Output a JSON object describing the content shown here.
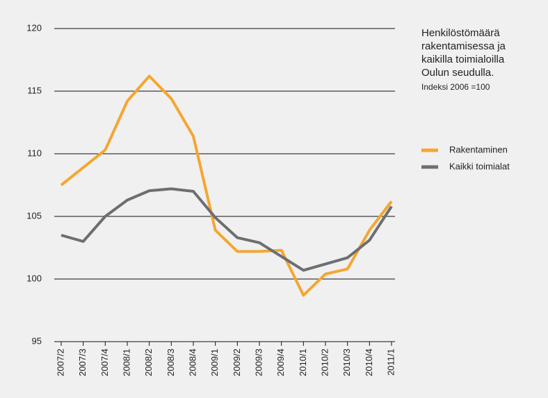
{
  "chart_data": {
    "type": "line",
    "title": "Henkilöstömäärä rakentamisessa ja kaikilla toimialoilla Oulun seudulla.",
    "subtitle": "Indeksi 2006 =100",
    "categories": [
      "2007/2",
      "2007/3",
      "2007/4",
      "2008/1",
      "2008/2",
      "2008/3",
      "2008/4",
      "2009/1",
      "2009/2",
      "2009/3",
      "2009/4",
      "2010/1",
      "2010/2",
      "2010/3",
      "2010/4",
      "2011/1"
    ],
    "series": [
      {
        "name": "Rakentaminen",
        "color": "#f5a631",
        "values": [
          107.5,
          108.9,
          110.3,
          114.2,
          116.2,
          114.4,
          111.4,
          103.9,
          102.2,
          102.2,
          102.3,
          98.7,
          100.4,
          100.8,
          103.9,
          106.2
        ]
      },
      {
        "name": "Kaikki toimialat",
        "color": "#6d6e71",
        "values": [
          103.5,
          103.0,
          105.0,
          106.3,
          107.05,
          107.2,
          107.0,
          104.9,
          103.3,
          102.9,
          101.8,
          100.7,
          101.2,
          101.7,
          103.1,
          105.8
        ]
      }
    ],
    "ylim": [
      95,
      120
    ],
    "yticks": [
      95,
      100,
      105,
      110,
      115,
      120
    ],
    "grid": true
  }
}
